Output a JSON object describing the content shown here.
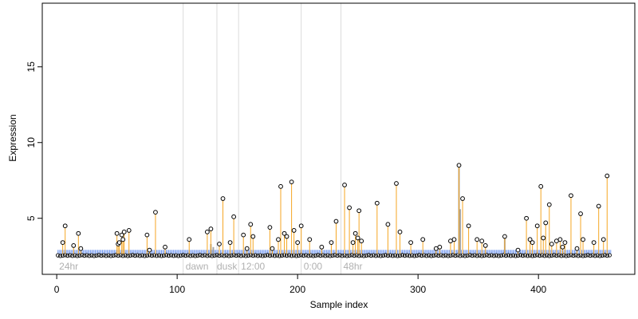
{
  "chart_data": {
    "type": "scatter",
    "title": "",
    "xlabel": "Sample index",
    "ylabel": "Expression",
    "xlim": [
      -12,
      480
    ],
    "ylim": [
      1.3,
      19.2
    ],
    "x_ticks": [
      0,
      100,
      200,
      300,
      400
    ],
    "y_ticks": [
      5,
      10,
      15
    ],
    "grid": false,
    "baseline": 2.65,
    "colors": {
      "stem": "#f5a623",
      "highlight_stem": "#a6a6a6",
      "baseline_band": "#7ea1f0",
      "points": "#000000",
      "divider": "#dcdcdc",
      "phase_label": "#b0b0b0"
    },
    "phase_dividers": [
      105,
      133,
      151,
      203,
      236
    ],
    "phase_labels": [
      {
        "x": 2,
        "text": "24hr"
      },
      {
        "x": 107,
        "text": "dawn"
      },
      {
        "x": 133,
        "text": "dusk"
      },
      {
        "x": 153,
        "text": "12:00"
      },
      {
        "x": 205,
        "text": "0:00"
      },
      {
        "x": 238,
        "text": "48hr"
      }
    ],
    "highlight_stems": [
      {
        "x": 334,
        "y": 8.5
      },
      {
        "x": 335,
        "y": 5.6
      },
      {
        "x": 372,
        "y": 3.8
      },
      {
        "x": 128,
        "y": 3.3
      },
      {
        "x": 130,
        "y": 3.1
      }
    ],
    "series": [
      {
        "values": [
          [
            5,
            3.4
          ],
          [
            7,
            4.5
          ],
          [
            14,
            3.2
          ],
          [
            18,
            4.0
          ],
          [
            20,
            3.0
          ],
          [
            50,
            4.0
          ],
          [
            51,
            3.3
          ],
          [
            52,
            3.4
          ],
          [
            54,
            3.9
          ],
          [
            55,
            3.6
          ],
          [
            56,
            4.1
          ],
          [
            60,
            4.2
          ],
          [
            75,
            3.9
          ],
          [
            77,
            2.9
          ],
          [
            82,
            5.4
          ],
          [
            90,
            3.1
          ],
          [
            110,
            3.6
          ],
          [
            125,
            4.1
          ],
          [
            128,
            4.3
          ],
          [
            135,
            3.3
          ],
          [
            138,
            6.3
          ],
          [
            144,
            3.4
          ],
          [
            147,
            5.1
          ],
          [
            155,
            3.9
          ],
          [
            158,
            3.0
          ],
          [
            161,
            4.6
          ],
          [
            163,
            3.8
          ],
          [
            177,
            4.4
          ],
          [
            179,
            3.0
          ],
          [
            184,
            3.6
          ],
          [
            186,
            7.1
          ],
          [
            189,
            4.0
          ],
          [
            191,
            3.8
          ],
          [
            195,
            7.4
          ],
          [
            197,
            4.2
          ],
          [
            200,
            3.4
          ],
          [
            203,
            4.5
          ],
          [
            210,
            3.6
          ],
          [
            220,
            3.1
          ],
          [
            228,
            3.4
          ],
          [
            232,
            4.8
          ],
          [
            239,
            7.2
          ],
          [
            243,
            5.7
          ],
          [
            246,
            3.4
          ],
          [
            248,
            4.0
          ],
          [
            250,
            3.7
          ],
          [
            251,
            5.5
          ],
          [
            253,
            3.5
          ],
          [
            266,
            6.0
          ],
          [
            275,
            4.6
          ],
          [
            282,
            7.3
          ],
          [
            285,
            4.1
          ],
          [
            294,
            3.4
          ],
          [
            304,
            3.6
          ],
          [
            315,
            3.0
          ],
          [
            318,
            3.1
          ],
          [
            327,
            3.5
          ],
          [
            330,
            3.6
          ],
          [
            334,
            8.5
          ],
          [
            337,
            6.3
          ],
          [
            342,
            4.5
          ],
          [
            349,
            3.6
          ],
          [
            353,
            3.5
          ],
          [
            356,
            3.2
          ],
          [
            372,
            3.8
          ],
          [
            383,
            2.9
          ],
          [
            390,
            5.0
          ],
          [
            393,
            3.6
          ],
          [
            395,
            3.4
          ],
          [
            399,
            4.5
          ],
          [
            402,
            7.1
          ],
          [
            404,
            3.7
          ],
          [
            406,
            4.7
          ],
          [
            409,
            5.9
          ],
          [
            411,
            3.3
          ],
          [
            415,
            3.5
          ],
          [
            418,
            3.6
          ],
          [
            420,
            3.1
          ],
          [
            422,
            3.4
          ],
          [
            427,
            6.5
          ],
          [
            432,
            3.0
          ],
          [
            435,
            5.3
          ],
          [
            437,
            3.6
          ],
          [
            446,
            3.4
          ],
          [
            450,
            5.8
          ],
          [
            454,
            3.6
          ],
          [
            457,
            7.8
          ]
        ]
      }
    ]
  }
}
